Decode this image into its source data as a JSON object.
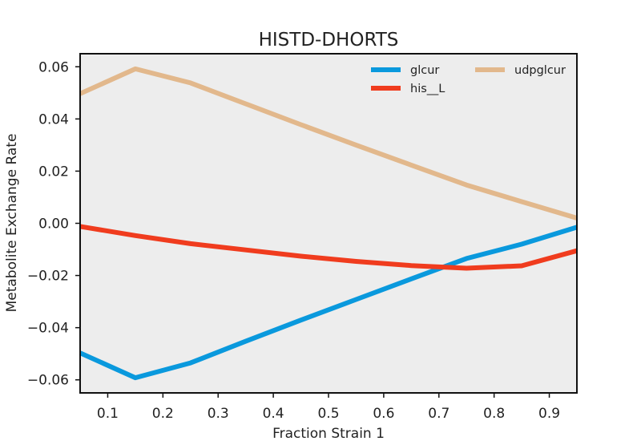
{
  "chart_data": {
    "type": "line",
    "title": "HISTD-DHORTS",
    "xlabel": "Fraction Strain 1",
    "ylabel": "Metabolite Exchange Rate",
    "xlim": [
      0.05,
      0.95
    ],
    "ylim": [
      -0.065,
      0.065
    ],
    "xticks": [
      0.1,
      0.2,
      0.3,
      0.4,
      0.5,
      0.6,
      0.7,
      0.8,
      0.9
    ],
    "xtick_labels": [
      "0.1",
      "0.2",
      "0.3",
      "0.4",
      "0.5",
      "0.6",
      "0.7",
      "0.8",
      "0.9"
    ],
    "yticks": [
      -0.06,
      -0.04,
      -0.02,
      0.0,
      0.02,
      0.04,
      0.06
    ],
    "ytick_labels": [
      "−0.06",
      "−0.04",
      "−0.02",
      "0.00",
      "0.02",
      "0.04",
      "0.06"
    ],
    "grid": false,
    "legend_position": "top-right",
    "background": "#ededed",
    "x": [
      0.05,
      0.15,
      0.25,
      0.35,
      0.45,
      0.55,
      0.65,
      0.75,
      0.85,
      0.95
    ],
    "series": [
      {
        "name": "glcur",
        "color": "#0a99dd",
        "values": [
          -0.0497,
          -0.0592,
          -0.0535,
          -0.0452,
          -0.0371,
          -0.0292,
          -0.0213,
          -0.0135,
          -0.008,
          -0.0015
        ]
      },
      {
        "name": "his__L",
        "color": "#f03c1e",
        "values": [
          -0.0012,
          -0.0047,
          -0.0078,
          -0.0102,
          -0.0126,
          -0.0146,
          -0.0162,
          -0.0172,
          -0.0163,
          -0.0105
        ]
      },
      {
        "name": "udpglcur",
        "color": "#e2b88c",
        "values": [
          0.0497,
          0.0592,
          0.0538,
          0.0458,
          0.0378,
          0.03,
          0.0223,
          0.0147,
          0.0083,
          0.002
        ]
      }
    ]
  }
}
